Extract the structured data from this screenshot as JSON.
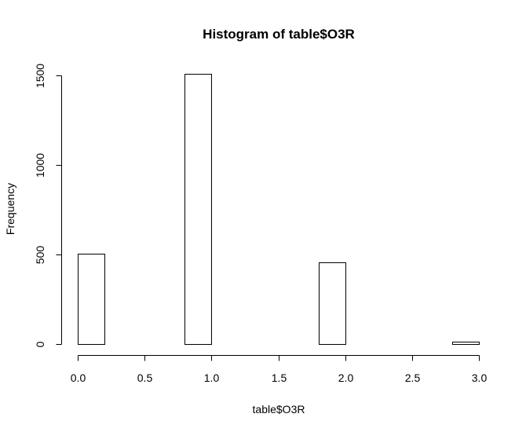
{
  "chart_data": {
    "type": "bar",
    "subtype": "histogram",
    "title": "Histogram of table$O3R",
    "xlabel": "table$O3R",
    "ylabel": "Frequency",
    "bins": [
      {
        "start": 0.0,
        "end": 0.2,
        "value": 505
      },
      {
        "start": 0.2,
        "end": 0.4,
        "value": 0
      },
      {
        "start": 0.4,
        "end": 0.6,
        "value": 0
      },
      {
        "start": 0.6,
        "end": 0.8,
        "value": 0
      },
      {
        "start": 0.8,
        "end": 1.0,
        "value": 1510
      },
      {
        "start": 1.0,
        "end": 1.2,
        "value": 0
      },
      {
        "start": 1.2,
        "end": 1.4,
        "value": 0
      },
      {
        "start": 1.4,
        "end": 1.6,
        "value": 0
      },
      {
        "start": 1.6,
        "end": 1.8,
        "value": 0
      },
      {
        "start": 1.8,
        "end": 2.0,
        "value": 455
      },
      {
        "start": 2.0,
        "end": 2.2,
        "value": 0
      },
      {
        "start": 2.2,
        "end": 2.4,
        "value": 0
      },
      {
        "start": 2.4,
        "end": 2.6,
        "value": 0
      },
      {
        "start": 2.6,
        "end": 2.8,
        "value": 0
      },
      {
        "start": 2.8,
        "end": 3.0,
        "value": 12
      }
    ],
    "xlim": [
      0,
      3
    ],
    "ylim": [
      0,
      1500
    ],
    "x_ticks": [
      0.0,
      0.5,
      1.0,
      1.5,
      2.0,
      2.5,
      3.0
    ],
    "x_tick_labels": [
      "0.0",
      "0.5",
      "1.0",
      "1.5",
      "2.0",
      "2.5",
      "3.0"
    ],
    "y_ticks": [
      0,
      500,
      1000,
      1500
    ],
    "y_tick_labels": [
      "0",
      "500",
      "1000",
      "1500"
    ],
    "grid": false,
    "legend": "none",
    "colors": {
      "bar_fill": "#ffffff",
      "bar_stroke": "#000000",
      "background": "#ffffff"
    }
  }
}
